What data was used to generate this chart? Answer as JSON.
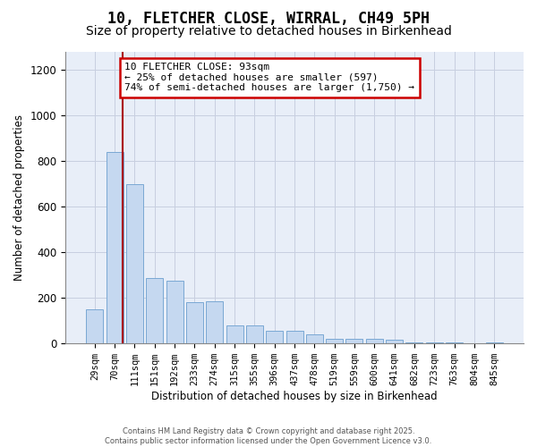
{
  "title_line1": "10, FLETCHER CLOSE, WIRRAL, CH49 5PH",
  "title_line2": "Size of property relative to detached houses in Birkenhead",
  "xlabel": "Distribution of detached houses by size in Birkenhead",
  "ylabel": "Number of detached properties",
  "categories": [
    "29sqm",
    "70sqm",
    "111sqm",
    "151sqm",
    "192sqm",
    "233sqm",
    "274sqm",
    "315sqm",
    "355sqm",
    "396sqm",
    "437sqm",
    "478sqm",
    "519sqm",
    "559sqm",
    "600sqm",
    "641sqm",
    "682sqm",
    "723sqm",
    "763sqm",
    "804sqm",
    "845sqm"
  ],
  "bar_values": [
    150,
    840,
    700,
    285,
    275,
    180,
    185,
    80,
    80,
    55,
    55,
    42,
    20,
    22,
    20,
    15,
    5,
    5,
    5,
    2,
    5
  ],
  "bar_color": "#c5d8f0",
  "bar_edge_color": "#7aa8d4",
  "grid_color": "#c8cfe0",
  "background_color": "#e8eef8",
  "vline_color": "#aa0000",
  "vline_x": 1.38,
  "annotation_text": "10 FLETCHER CLOSE: 93sqm\n← 25% of detached houses are smaller (597)\n74% of semi-detached houses are larger (1,750) →",
  "annotation_box_color": "#cc0000",
  "ylim": [
    0,
    1280
  ],
  "yticks": [
    0,
    200,
    400,
    600,
    800,
    1000,
    1200
  ],
  "footer_text": "Contains HM Land Registry data © Crown copyright and database right 2025.\nContains public sector information licensed under the Open Government Licence v3.0.",
  "title_fontsize": 12,
  "subtitle_fontsize": 10,
  "annotation_fontsize": 8
}
